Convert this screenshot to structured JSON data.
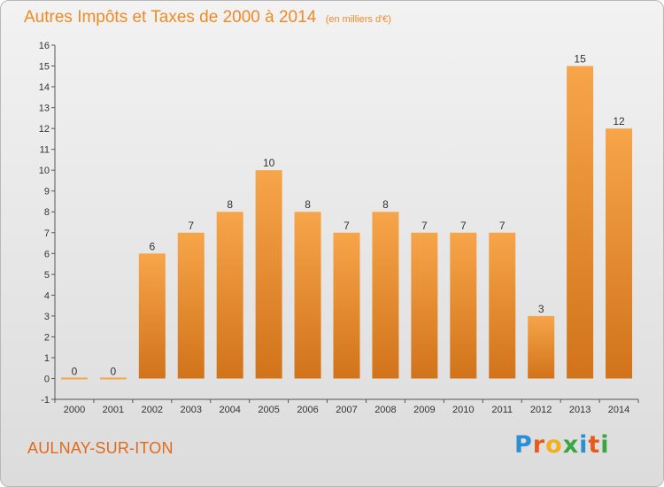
{
  "header": {
    "title": "Autres Impôts et Taxes de 2000 à 2014",
    "subtitle": "(en milliers d'€)"
  },
  "footer": {
    "commune": "AULNAY-SUR-ITON",
    "brand_letters": [
      "P",
      "r",
      "o",
      "x",
      "i",
      "t",
      "i"
    ],
    "brand_colors": [
      "#2b8fd6",
      "#e85a1c",
      "#f2b01e",
      "#3aa641",
      "#2b8fd6",
      "#e85a1c",
      "#3aa641"
    ]
  },
  "chart_data": {
    "type": "bar",
    "title": "Autres Impôts et Taxes de 2000 à 2014",
    "xlabel": "",
    "ylabel": "",
    "categories": [
      "2000",
      "2001",
      "2002",
      "2003",
      "2004",
      "2005",
      "2006",
      "2007",
      "2008",
      "2009",
      "2010",
      "2011",
      "2012",
      "2013",
      "2014"
    ],
    "values": [
      0,
      0,
      6,
      7,
      8,
      10,
      8,
      7,
      8,
      7,
      7,
      7,
      3,
      15,
      12
    ],
    "ylim": [
      -1,
      16
    ],
    "yticks": [
      "-1",
      "0",
      "1",
      "2",
      "3",
      "4",
      "5",
      "6",
      "7",
      "8",
      "9",
      "10",
      "11",
      "12",
      "13",
      "14",
      "15",
      "16"
    ],
    "grid": false,
    "colors": {
      "bar_top": "#f7a54a",
      "bar_bottom": "#d1731a",
      "axis": "#555555",
      "text": "#333333"
    }
  }
}
